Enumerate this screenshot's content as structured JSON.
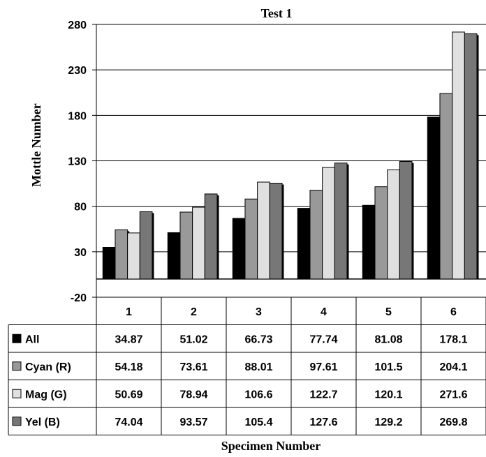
{
  "chart_data": {
    "type": "bar",
    "title": "Test 1",
    "xlabel": "Specimen Number",
    "ylabel": "Mottle Number",
    "categories": [
      "1",
      "2",
      "3",
      "4",
      "5",
      "6"
    ],
    "ylim": [
      -20,
      280
    ],
    "yticks": [
      -20,
      30,
      80,
      130,
      180,
      230,
      280
    ],
    "grid": true,
    "legend": "data-table-left",
    "series": [
      {
        "name": "All",
        "color": "#000000",
        "values": [
          34.87,
          51.02,
          66.73,
          77.74,
          81.08,
          178.1
        ],
        "labels": [
          "34.87",
          "51.02",
          "66.73",
          "77.74",
          "81.08",
          "178.1"
        ]
      },
      {
        "name": "Cyan (R)",
        "color": "#999999",
        "values": [
          54.18,
          73.61,
          88.01,
          97.61,
          101.5,
          204.1
        ],
        "labels": [
          "54.18",
          "73.61",
          "88.01",
          "97.61",
          "101.5",
          "204.1"
        ]
      },
      {
        "name": "Mag (G)",
        "color": "#e0e0e0",
        "values": [
          50.69,
          78.94,
          106.6,
          122.7,
          120.1,
          271.6
        ],
        "labels": [
          "50.69",
          "78.94",
          "106.6",
          "122.7",
          "120.1",
          "271.6"
        ]
      },
      {
        "name": "Yel (B)",
        "color": "#777777",
        "values": [
          74.04,
          93.57,
          105.4,
          127.6,
          129.2,
          269.8
        ],
        "labels": [
          "74.04",
          "93.57",
          "105.4",
          "127.6",
          "129.2",
          "269.8"
        ]
      }
    ]
  }
}
